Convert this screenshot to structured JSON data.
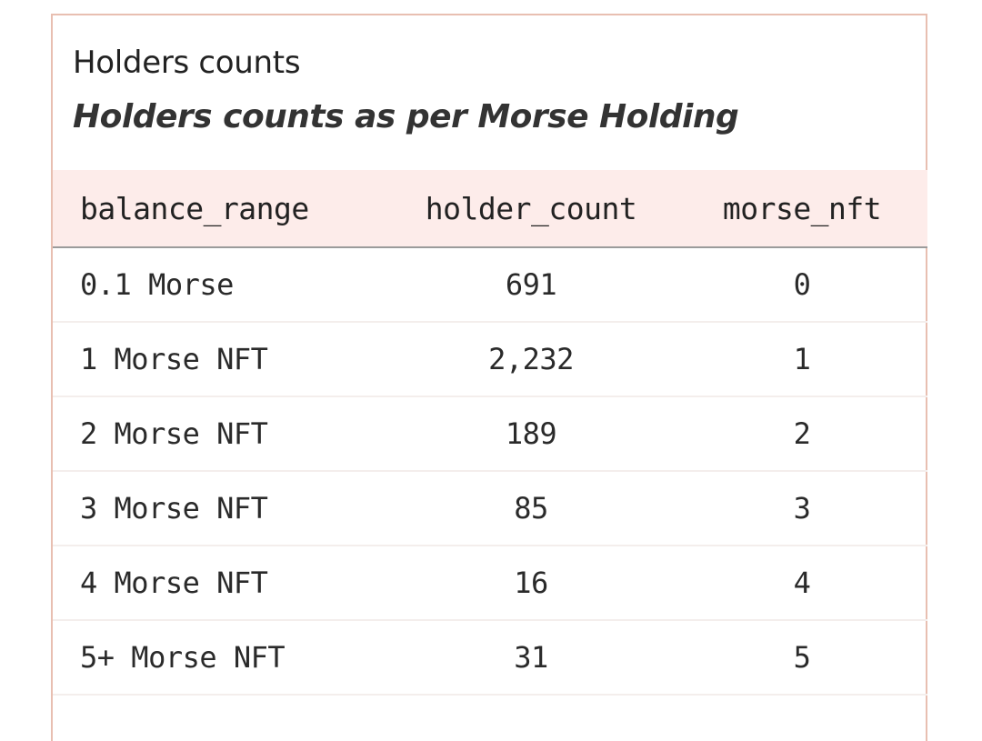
{
  "card": {
    "title": "Holders counts",
    "subtitle": "Holders counts as per Morse Holding"
  },
  "table": {
    "columns": [
      "balance_range",
      "holder_count",
      "morse_nft"
    ],
    "rows": [
      [
        "0.1 Morse",
        "691",
        "0"
      ],
      [
        "1 Morse NFT",
        "2,232",
        "1"
      ],
      [
        "2 Morse NFT",
        "189",
        "2"
      ],
      [
        "3 Morse NFT",
        "85",
        "3"
      ],
      [
        "4 Morse NFT",
        "16",
        "4"
      ],
      [
        "5+ Morse NFT",
        "31",
        "5"
      ]
    ]
  },
  "colors": {
    "card_border": "#e8bfb1",
    "header_bg": "#fdecea",
    "header_rule": "#9b9b9b",
    "row_rule": "#f4eeec"
  }
}
